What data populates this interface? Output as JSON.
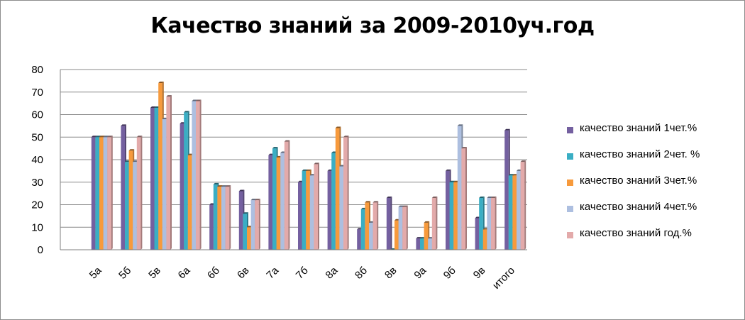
{
  "chart_data": {
    "type": "bar",
    "title": "Качество знаний за 2009-2010уч.год",
    "categories": [
      "5а",
      "5б",
      "5в",
      "6а",
      "6б",
      "6в",
      "7а",
      "7б",
      "8а",
      "8б",
      "8в",
      "9а",
      "9б",
      "9в",
      "итого"
    ],
    "ylim": [
      0,
      80
    ],
    "yticks": [
      "0",
      "10",
      "20",
      "30",
      "40",
      "50",
      "60",
      "70",
      "80"
    ],
    "grid": true,
    "legend_position": "right",
    "series": [
      {
        "name": "качество знаний  1чет.%",
        "color": "#7460a0",
        "values": [
          50,
          55,
          63,
          56,
          20,
          26,
          42,
          30,
          35,
          9,
          23,
          5,
          35,
          14,
          53
        ]
      },
      {
        "name": "качество знаний  2чет. %",
        "color": "#3aaec4",
        "values": [
          50,
          39,
          63,
          61,
          29,
          16,
          45,
          35,
          43,
          18,
          0,
          5,
          30,
          23,
          33
        ]
      },
      {
        "name": "качество знаний  3чет.%",
        "color": "#f79a3c",
        "values": [
          50,
          44,
          74,
          42,
          28,
          10,
          41,
          35,
          54,
          21,
          13,
          12,
          30,
          9,
          33
        ]
      },
      {
        "name": "качество знаний  4чет.%",
        "color": "#adbfe0",
        "values": [
          50,
          39,
          58,
          66,
          28,
          22,
          43,
          33,
          37,
          12,
          19,
          5,
          55,
          23,
          35
        ]
      },
      {
        "name": "качество знаний  год.%",
        "color": "#e3aaaa",
        "values": [
          50,
          50,
          68,
          66,
          28,
          22,
          48,
          38,
          50,
          21,
          19,
          23,
          45,
          23,
          39
        ]
      }
    ]
  }
}
